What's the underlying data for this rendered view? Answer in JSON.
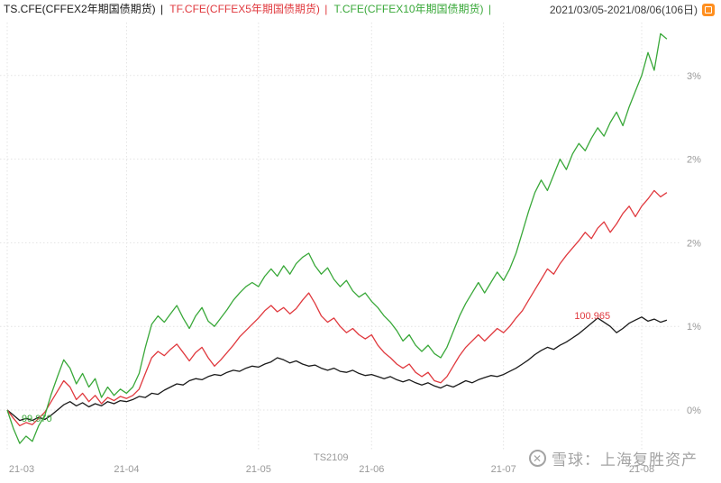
{
  "header": {
    "separator": "|",
    "legend": [
      {
        "name": "TS",
        "label": "TS.CFE(CFFEX2年期国债期货)",
        "color": "#1a1a1a"
      },
      {
        "name": "TF",
        "label": "TF.CFE(CFFEX5年期国债期货)",
        "color": "#e0393e"
      },
      {
        "name": "T",
        "label": "T.CFE(CFFEX10年期国债期货)",
        "color": "#39a839"
      }
    ],
    "date_range": "2021/03/05-2021/08/06(106日)"
  },
  "chart_data": {
    "type": "line",
    "title": "",
    "xlabel": "",
    "ylabel": "",
    "grid": true,
    "legend_position": "top-left",
    "x_ticks": [
      "21-03",
      "21-04",
      "21-05",
      "21-06",
      "21-07",
      "21-08"
    ],
    "x_tick_days": [
      0,
      19,
      40,
      58,
      79,
      101
    ],
    "days_total": 106,
    "ylim": [
      -0.6,
      3.75
    ],
    "y_ticks": [
      {
        "value": 0.0,
        "label": "0%"
      },
      {
        "value": 0.8,
        "label": "1%"
      },
      {
        "value": 1.6,
        "label": "2%"
      },
      {
        "value": 2.4,
        "label": "2%"
      },
      {
        "value": 3.2,
        "label": "3%"
      }
    ],
    "series": [
      {
        "name": "TS.CFE",
        "color": "#1a1a1a",
        "values": [
          0.0,
          -0.05,
          -0.1,
          -0.08,
          -0.1,
          -0.07,
          -0.09,
          -0.05,
          0.0,
          0.05,
          0.08,
          0.04,
          0.07,
          0.03,
          0.06,
          0.04,
          0.08,
          0.06,
          0.09,
          0.08,
          0.1,
          0.13,
          0.12,
          0.16,
          0.15,
          0.19,
          0.22,
          0.25,
          0.24,
          0.28,
          0.3,
          0.29,
          0.32,
          0.34,
          0.33,
          0.36,
          0.38,
          0.37,
          0.4,
          0.42,
          0.41,
          0.44,
          0.46,
          0.5,
          0.48,
          0.45,
          0.47,
          0.44,
          0.42,
          0.43,
          0.4,
          0.38,
          0.4,
          0.37,
          0.36,
          0.38,
          0.35,
          0.33,
          0.34,
          0.32,
          0.3,
          0.32,
          0.29,
          0.27,
          0.29,
          0.26,
          0.24,
          0.26,
          0.23,
          0.21,
          0.24,
          0.22,
          0.25,
          0.28,
          0.26,
          0.29,
          0.31,
          0.33,
          0.32,
          0.34,
          0.37,
          0.4,
          0.44,
          0.48,
          0.53,
          0.57,
          0.6,
          0.58,
          0.62,
          0.65,
          0.69,
          0.73,
          0.78,
          0.83,
          0.88,
          0.84,
          0.8,
          0.74,
          0.78,
          0.83,
          0.86,
          0.89,
          0.85,
          0.87,
          0.84,
          0.86
        ]
      },
      {
        "name": "TF.CFE",
        "color": "#e0393e",
        "values": [
          0.0,
          -0.08,
          -0.15,
          -0.12,
          -0.14,
          -0.08,
          -0.02,
          0.08,
          0.18,
          0.28,
          0.22,
          0.1,
          0.16,
          0.08,
          0.14,
          0.06,
          0.12,
          0.09,
          0.13,
          0.11,
          0.14,
          0.2,
          0.35,
          0.5,
          0.56,
          0.52,
          0.58,
          0.63,
          0.55,
          0.47,
          0.55,
          0.6,
          0.5,
          0.42,
          0.48,
          0.55,
          0.62,
          0.7,
          0.76,
          0.82,
          0.88,
          0.95,
          1.0,
          0.94,
          0.98,
          0.92,
          0.97,
          1.05,
          1.12,
          1.02,
          0.9,
          0.84,
          0.88,
          0.8,
          0.74,
          0.78,
          0.72,
          0.68,
          0.72,
          0.62,
          0.55,
          0.5,
          0.44,
          0.4,
          0.44,
          0.36,
          0.32,
          0.36,
          0.28,
          0.26,
          0.32,
          0.42,
          0.52,
          0.6,
          0.66,
          0.72,
          0.66,
          0.72,
          0.78,
          0.74,
          0.8,
          0.88,
          0.95,
          1.05,
          1.15,
          1.25,
          1.35,
          1.3,
          1.4,
          1.48,
          1.55,
          1.62,
          1.7,
          1.64,
          1.74,
          1.8,
          1.7,
          1.78,
          1.88,
          1.95,
          1.85,
          1.95,
          2.02,
          2.1,
          2.04,
          2.08
        ]
      },
      {
        "name": "T.CFE",
        "color": "#39a839",
        "values": [
          0.0,
          -0.18,
          -0.32,
          -0.25,
          -0.3,
          -0.15,
          -0.05,
          0.15,
          0.32,
          0.48,
          0.4,
          0.25,
          0.35,
          0.22,
          0.3,
          0.12,
          0.22,
          0.14,
          0.2,
          0.16,
          0.22,
          0.35,
          0.6,
          0.82,
          0.9,
          0.84,
          0.92,
          1.0,
          0.88,
          0.78,
          0.9,
          0.98,
          0.85,
          0.8,
          0.88,
          0.96,
          1.05,
          1.12,
          1.18,
          1.22,
          1.18,
          1.28,
          1.35,
          1.28,
          1.38,
          1.3,
          1.4,
          1.46,
          1.5,
          1.38,
          1.3,
          1.36,
          1.25,
          1.18,
          1.24,
          1.14,
          1.08,
          1.12,
          1.04,
          0.98,
          0.9,
          0.84,
          0.76,
          0.66,
          0.72,
          0.62,
          0.56,
          0.62,
          0.54,
          0.5,
          0.6,
          0.75,
          0.9,
          1.02,
          1.12,
          1.22,
          1.12,
          1.22,
          1.32,
          1.24,
          1.35,
          1.5,
          1.7,
          1.9,
          2.08,
          2.2,
          2.1,
          2.25,
          2.4,
          2.3,
          2.45,
          2.55,
          2.48,
          2.6,
          2.7,
          2.62,
          2.75,
          2.85,
          2.72,
          2.9,
          3.05,
          3.2,
          3.42,
          3.25,
          3.6,
          3.55
        ]
      }
    ],
    "annotations": [
      {
        "text": "99.970",
        "meaning": "period low price",
        "color": "#39a839",
        "day": 2,
        "value": -0.03
      },
      {
        "text": "100.965",
        "meaning": "period high price",
        "color": "#e0393e",
        "day": 90,
        "value": 0.96
      }
    ],
    "footnote": "TS2109"
  },
  "watermark": {
    "logo_glyph": "✕",
    "text": "雪球：上海复胜资产"
  }
}
